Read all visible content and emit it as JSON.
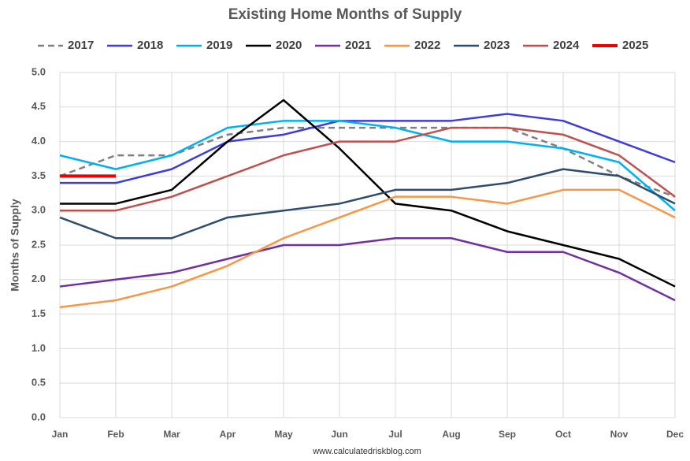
{
  "chart_data": {
    "type": "line",
    "title": "Existing Home Months of Supply",
    "y_label": "Months of Supply",
    "source": "www.calculatedriskblog.com",
    "categories": [
      "Jan",
      "Feb",
      "Mar",
      "Apr",
      "May",
      "Jun",
      "Jul",
      "Aug",
      "Sep",
      "Oct",
      "Nov",
      "Dec"
    ],
    "ylim": [
      0,
      5
    ],
    "yticks": [
      {
        "value": 0,
        "label": "0.0"
      },
      0.5,
      {
        "value": 1,
        "label": "1.0"
      },
      1.5,
      {
        "value": 2,
        "label": "2.0"
      },
      2.5,
      {
        "value": 3,
        "label": "3.0"
      },
      3.5,
      {
        "value": 4,
        "label": "4.0"
      },
      4.5,
      {
        "value": 5,
        "label": "5.0"
      }
    ],
    "grid": true,
    "legend": "top",
    "series": [
      {
        "name": "2017",
        "color": "#808080",
        "dashed": true,
        "values": [
          3.5,
          3.8,
          3.8,
          4.1,
          4.2,
          4.2,
          4.2,
          4.2,
          4.2,
          3.9,
          3.5,
          3.2
        ]
      },
      {
        "name": "2018",
        "color": "#3c3cdc",
        "values": [
          3.4,
          3.4,
          3.6,
          4.0,
          4.1,
          4.3,
          4.3,
          4.3,
          4.4,
          4.3,
          4.0,
          3.7
        ]
      },
      {
        "name": "2019",
        "color": "#00b0f0",
        "values": [
          3.8,
          3.6,
          3.8,
          4.2,
          4.3,
          4.3,
          4.2,
          4.0,
          4.0,
          3.9,
          3.7,
          3.0
        ]
      },
      {
        "name": "2020",
        "color": "#000000",
        "values": [
          3.1,
          3.1,
          3.3,
          4.0,
          4.6,
          3.9,
          3.1,
          3.0,
          2.7,
          2.5,
          2.3,
          1.9
        ]
      },
      {
        "name": "2021",
        "color": "#7030a0",
        "values": [
          1.9,
          2.0,
          2.1,
          2.3,
          2.5,
          2.5,
          2.6,
          2.6,
          2.4,
          2.4,
          2.1,
          1.7
        ]
      },
      {
        "name": "2022",
        "color": "#f79646",
        "values": [
          1.6,
          1.7,
          1.9,
          2.2,
          2.6,
          2.9,
          3.2,
          3.2,
          3.1,
          3.3,
          3.3,
          2.9
        ]
      },
      {
        "name": "2023",
        "color": "#2f4b6e",
        "values": [
          2.9,
          2.6,
          2.6,
          2.9,
          3.0,
          3.1,
          3.3,
          3.3,
          3.4,
          3.6,
          3.5,
          3.1
        ]
      },
      {
        "name": "2024",
        "color": "#c0504d",
        "values": [
          3.0,
          3.0,
          3.2,
          3.5,
          3.8,
          4.0,
          4.0,
          4.2,
          4.2,
          4.1,
          3.8,
          3.2
        ]
      },
      {
        "name": "2025",
        "color": "#ee0000",
        "values": [
          3.5,
          3.5,
          null,
          null,
          null,
          null,
          null,
          null,
          null,
          null,
          null,
          null
        ]
      }
    ]
  }
}
